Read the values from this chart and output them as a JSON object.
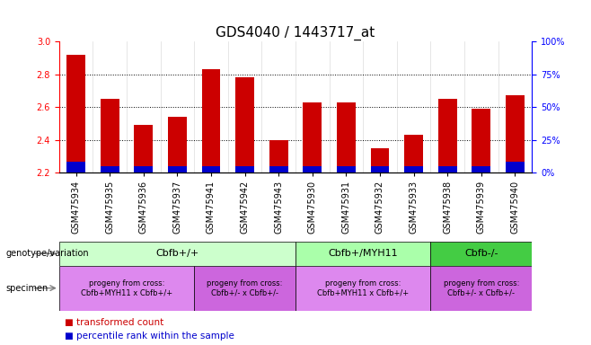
{
  "title": "GDS4040 / 1443717_at",
  "samples": [
    "GSM475934",
    "GSM475935",
    "GSM475936",
    "GSM475937",
    "GSM475941",
    "GSM475942",
    "GSM475943",
    "GSM475930",
    "GSM475931",
    "GSM475932",
    "GSM475933",
    "GSM475938",
    "GSM475939",
    "GSM475940"
  ],
  "transformed_count": [
    2.92,
    2.65,
    2.49,
    2.54,
    2.83,
    2.78,
    2.4,
    2.63,
    2.63,
    2.35,
    2.43,
    2.65,
    2.59,
    2.67
  ],
  "percentile_pct": [
    8,
    5,
    5,
    5,
    5,
    5,
    5,
    5,
    5,
    5,
    5,
    5,
    5,
    8
  ],
  "bar_base": 2.2,
  "ylim": [
    2.2,
    3.0
  ],
  "y2lim": [
    0,
    100
  ],
  "y_ticks": [
    2.2,
    2.4,
    2.6,
    2.8,
    3.0
  ],
  "y2_ticks": [
    0,
    25,
    50,
    75,
    100
  ],
  "bar_color": "#cc0000",
  "percentile_color": "#0000cc",
  "bar_width": 0.55,
  "geno_groups": [
    {
      "label": "Cbfb+/+",
      "start": 0,
      "end": 7,
      "color": "#ccffcc"
    },
    {
      "label": "Cbfb+/MYH11",
      "start": 7,
      "end": 11,
      "color": "#aaffaa"
    },
    {
      "label": "Cbfb-/-",
      "start": 11,
      "end": 14,
      "color": "#44cc44"
    }
  ],
  "spec_groups": [
    {
      "label": "progeny from cross:\nCbfb+MYH11 x Cbfb+/+",
      "start": 0,
      "end": 4,
      "color": "#dd88ee"
    },
    {
      "label": "progeny from cross:\nCbfb+/- x Cbfb+/-",
      "start": 4,
      "end": 7,
      "color": "#cc66dd"
    },
    {
      "label": "progeny from cross:\nCbfb+MYH11 x Cbfb+/+",
      "start": 7,
      "end": 11,
      "color": "#dd88ee"
    },
    {
      "label": "progeny from cross:\nCbfb+/- x Cbfb+/-",
      "start": 11,
      "end": 14,
      "color": "#cc66dd"
    }
  ],
  "bar_legend_color": "#cc0000",
  "pct_legend_color": "#0000cc",
  "title_fontsize": 11,
  "tick_fontsize": 7,
  "label_fontsize": 8
}
